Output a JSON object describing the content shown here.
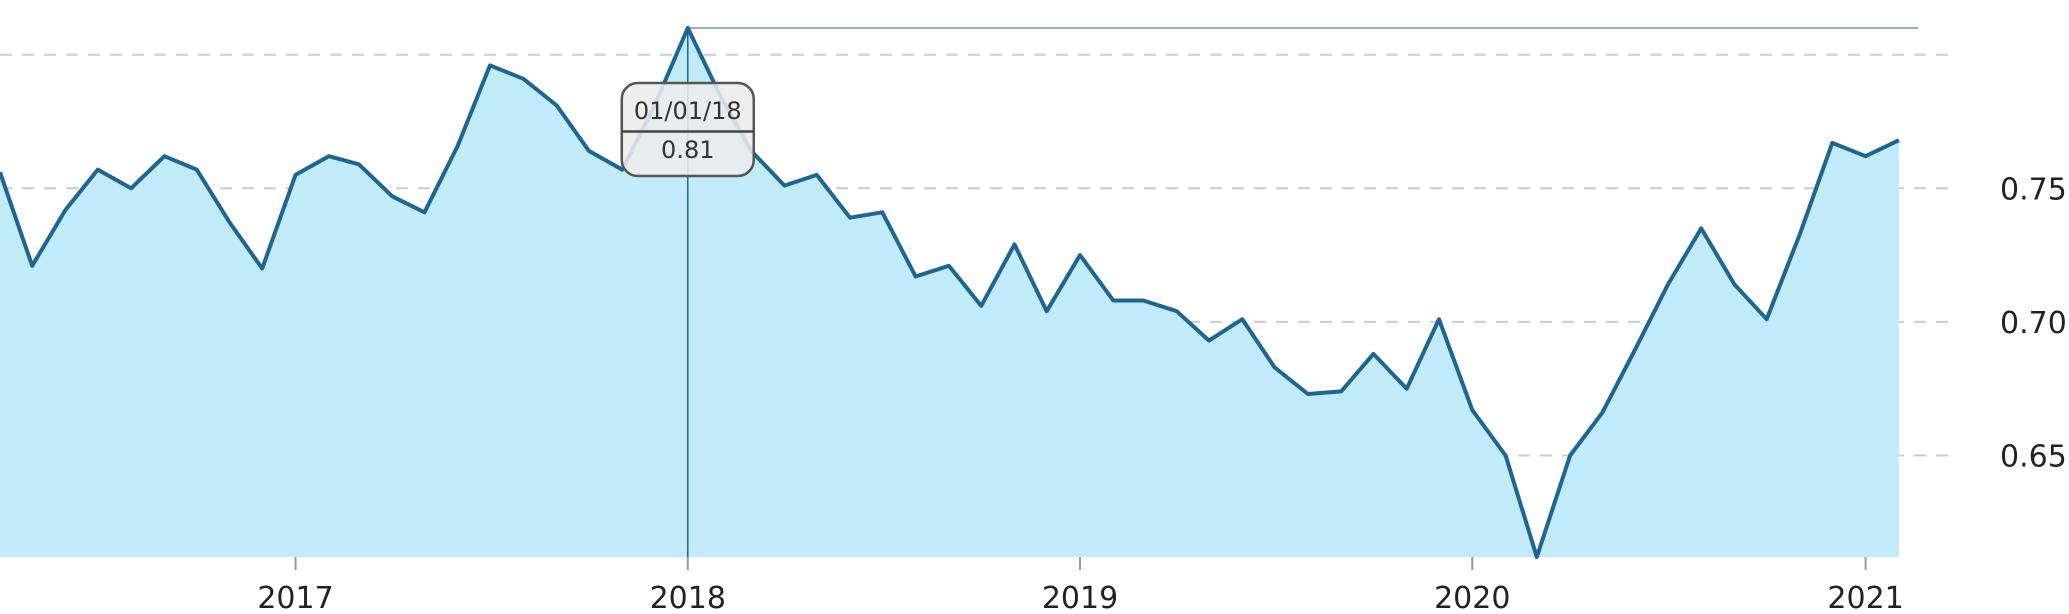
{
  "chart_data": {
    "type": "area",
    "x_ticks": [
      "2017",
      "2018",
      "2019",
      "2020",
      "2021"
    ],
    "y_ticks": [
      "0.65",
      "0.70",
      "0.75"
    ],
    "ylim": [
      0.612,
      0.81
    ],
    "xlim": [
      "2016-04-01",
      "2021-03-01"
    ],
    "grid": true,
    "series": [
      {
        "x": [
          "2016-04-01",
          "2016-05-01",
          "2016-06-01",
          "2016-07-01",
          "2016-08-01",
          "2016-09-01",
          "2016-10-01",
          "2016-11-01",
          "2016-12-01",
          "2017-01-01",
          "2017-02-01",
          "2017-03-01",
          "2017-04-01",
          "2017-05-01",
          "2017-06-01",
          "2017-07-01",
          "2017-08-01",
          "2017-09-01",
          "2017-10-01",
          "2017-11-01",
          "2017-12-01",
          "2018-01-01",
          "2018-02-01",
          "2018-03-01",
          "2018-04-01",
          "2018-05-01",
          "2018-06-01",
          "2018-07-01",
          "2018-08-01",
          "2018-09-01",
          "2018-10-01",
          "2018-11-01",
          "2018-12-01",
          "2019-01-01",
          "2019-02-01",
          "2019-03-01",
          "2019-04-01",
          "2019-05-01",
          "2019-06-01",
          "2019-07-01",
          "2019-08-01",
          "2019-09-01",
          "2019-10-01",
          "2019-11-01",
          "2019-12-01",
          "2020-01-01",
          "2020-02-01",
          "2020-03-01",
          "2020-04-01",
          "2020-05-01",
          "2020-06-01",
          "2020-07-01",
          "2020-08-01",
          "2020-09-01",
          "2020-10-01",
          "2020-11-01",
          "2020-12-01",
          "2021-01-01",
          "2021-02-01"
        ],
        "values": [
          0.756,
          0.721,
          0.742,
          0.757,
          0.75,
          0.762,
          0.757,
          0.737,
          0.72,
          0.755,
          0.762,
          0.759,
          0.747,
          0.741,
          0.766,
          0.796,
          0.791,
          0.781,
          0.764,
          0.757,
          0.781,
          0.81,
          0.784,
          0.764,
          0.751,
          0.755,
          0.739,
          0.741,
          0.717,
          0.721,
          0.706,
          0.729,
          0.704,
          0.725,
          0.708,
          0.708,
          0.704,
          0.693,
          0.701,
          0.683,
          0.673,
          0.674,
          0.688,
          0.675,
          0.701,
          0.667,
          0.65,
          0.612,
          0.65,
          0.666,
          0.69,
          0.714,
          0.735,
          0.714,
          0.701,
          0.733,
          0.767,
          0.762,
          0.768
        ]
      }
    ],
    "colors": {
      "line": "#1f6591",
      "fill": "#c2ebfa",
      "grid": "#cccccc",
      "crosshair": "#1f6591"
    },
    "tooltip": {
      "date": "01/01/18",
      "value": "0.81",
      "x": "2018-01-01"
    }
  }
}
